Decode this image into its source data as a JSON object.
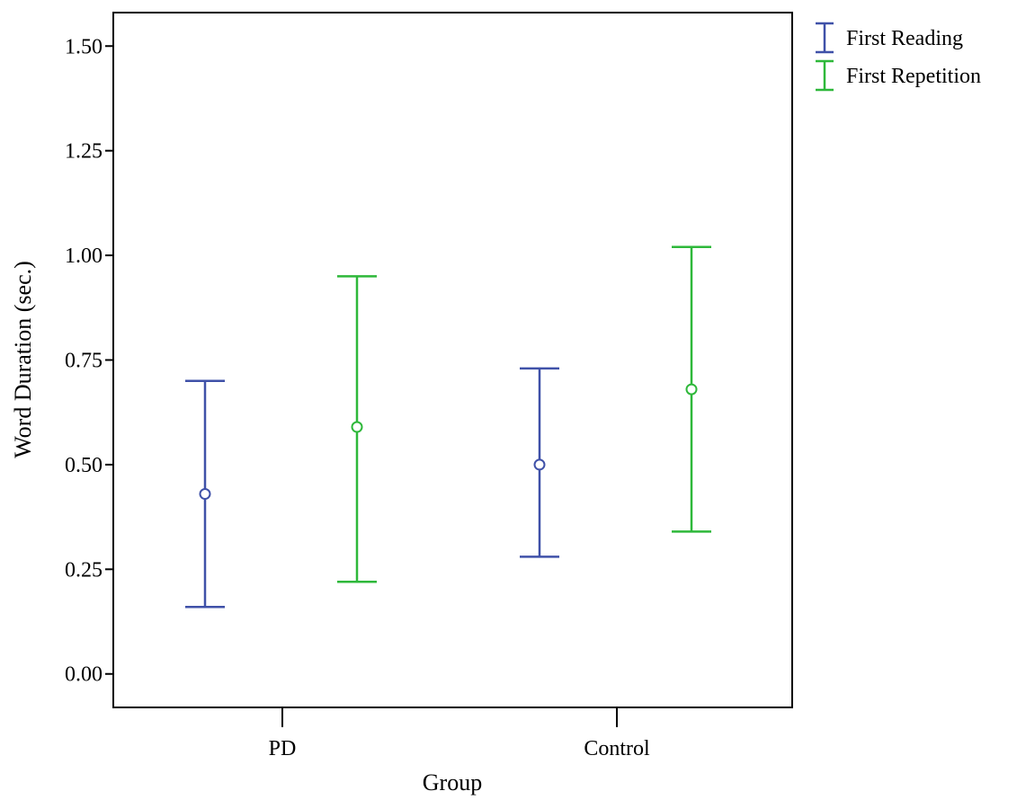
{
  "chart_data": {
    "type": "errorbar",
    "xlabel": "Group",
    "ylabel": "Word Duration (sec.)",
    "categories": [
      "PD",
      "Control"
    ],
    "ylim": [
      -0.08,
      1.58
    ],
    "yticks": [
      0.0,
      0.25,
      0.5,
      0.75,
      1.0,
      1.25,
      1.5
    ],
    "ytick_labels": [
      "0.00",
      "0.25",
      "0.50",
      "0.75",
      "1.00",
      "1.25",
      "1.50"
    ],
    "grid": false,
    "legend_position": "top-right outside plot",
    "series": [
      {
        "name": "First Reading",
        "color": "#3F51A8",
        "points": [
          {
            "category": "PD",
            "mean": 0.43,
            "lower": 0.16,
            "upper": 0.7
          },
          {
            "category": "Control",
            "mean": 0.5,
            "lower": 0.28,
            "upper": 0.73
          }
        ]
      },
      {
        "name": "First Repetition",
        "color": "#2EB83A",
        "points": [
          {
            "category": "PD",
            "mean": 0.59,
            "lower": 0.22,
            "upper": 0.95
          },
          {
            "category": "Control",
            "mean": 0.68,
            "lower": 0.34,
            "upper": 1.02
          }
        ]
      }
    ]
  }
}
